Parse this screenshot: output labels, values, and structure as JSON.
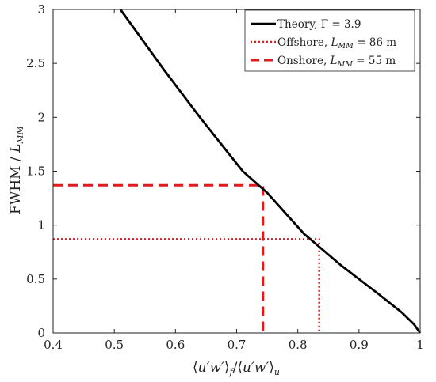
{
  "chart_data": {
    "type": "line",
    "xlabel": "⟨u′w′⟩f / ⟨u′w′⟩u",
    "ylabel": "FWHM / LMM",
    "xlim": [
      0.4,
      1.0
    ],
    "ylim": [
      0,
      3
    ],
    "xticks": [
      0.4,
      0.5,
      0.6,
      0.7,
      0.8,
      0.9,
      1.0
    ],
    "xtick_labels": [
      "0.4",
      "0.5",
      "0.6",
      "0.7",
      "0.8",
      "0.9",
      "1"
    ],
    "yticks": [
      0,
      0.5,
      1,
      1.5,
      2,
      2.5,
      3
    ],
    "ytick_labels": [
      "0",
      "0.5",
      "1",
      "1.5",
      "2",
      "2.5",
      "3"
    ],
    "grid": false,
    "legend_position": "top-right",
    "series": [
      {
        "name": "Theory, Γ = 3.9",
        "style": "solid",
        "color": "#000000",
        "x": [
          0.51,
          0.58,
          0.64,
          0.71,
          0.75,
          0.81,
          0.87,
          0.93,
          0.97,
          0.99,
          1.0
        ],
        "y": [
          3.0,
          2.45,
          2.0,
          1.5,
          1.3,
          0.92,
          0.63,
          0.37,
          0.19,
          0.08,
          0.0
        ]
      },
      {
        "name": "Offshore, LMM = 86 m",
        "style": "dotted",
        "color": "#e01b1b",
        "x": [
          0.4,
          0.835,
          0.835
        ],
        "y": [
          0.87,
          0.87,
          0.0
        ]
      },
      {
        "name": "Onshore, LMM = 55 m",
        "style": "dashed",
        "color": "#e01b1b",
        "x": [
          0.4,
          0.743,
          0.743
        ],
        "y": [
          1.37,
          1.37,
          0.0
        ]
      }
    ]
  },
  "legend": {
    "theory": {
      "prefix": "Theory, ",
      "symbol": "Γ",
      "eq": " = 3.9"
    },
    "offshore": {
      "prefix": "Offshore, ",
      "L": "L",
      "sub": "MM",
      "eq": " = 86 m"
    },
    "onshore": {
      "prefix": "Onshore, ",
      "L": "L",
      "sub": "MM",
      "eq": " = 55 m"
    }
  },
  "labels": {
    "y_main": "FWHM / ",
    "y_L": "L",
    "y_sub": "MM",
    "x_open": "⟨",
    "x_u1": "u′w′",
    "x_close": "⟩",
    "x_f": "f",
    "x_slash": "/",
    "x_u2": "u′w′",
    "x_u": "u"
  }
}
